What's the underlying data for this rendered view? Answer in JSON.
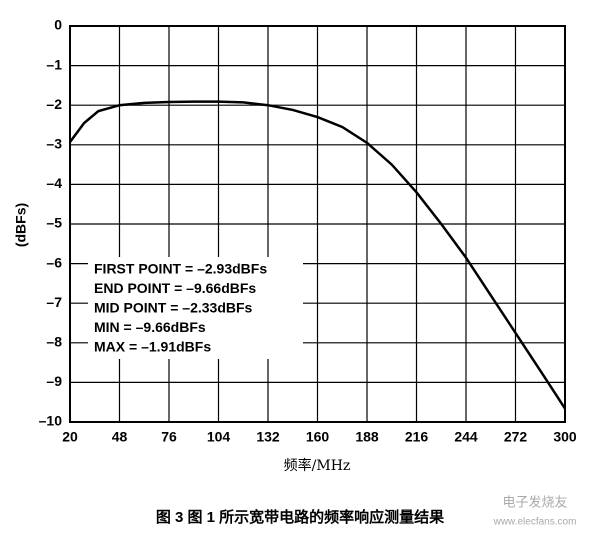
{
  "chart_data": {
    "type": "line",
    "y_label": "(dBFs)",
    "x_label": "频率/MHz",
    "caption": "图 3   图 1 所示宽带电路的频率响应测量结果",
    "watermark": [
      "电子发烧友",
      "www.elecfans.com"
    ],
    "annotations": [
      "FIRST POINT = –2.93dBFs",
      "END POINT = –9.66dBFs",
      "MID POINT = –2.33dBFs",
      "MIN = –9.66dBFs",
      "MAX = –1.91dBFs"
    ],
    "x": [
      20,
      28,
      36,
      48,
      62,
      76,
      90,
      104,
      118,
      132,
      146,
      160,
      174,
      188,
      202,
      216,
      230,
      244,
      258,
      272,
      286,
      300
    ],
    "values": [
      -2.93,
      -2.45,
      -2.15,
      -2.0,
      -1.94,
      -1.92,
      -1.91,
      -1.91,
      -1.93,
      -2.0,
      -2.12,
      -2.3,
      -2.55,
      -2.95,
      -3.5,
      -4.2,
      -5.0,
      -5.85,
      -6.8,
      -7.75,
      -8.7,
      -9.66
    ],
    "color": "#000000",
    "xlim": [
      20,
      300
    ],
    "xticks": [
      20,
      48,
      76,
      104,
      132,
      160,
      188,
      216,
      244,
      272,
      300
    ],
    "ylim": [
      -10,
      0
    ],
    "yticks": [
      0,
      {
        "value": -1,
        "label": "–1"
      },
      {
        "value": -2,
        "label": "–2"
      },
      {
        "value": -3,
        "label": "–3"
      },
      {
        "value": -4,
        "label": "–4"
      },
      {
        "value": -5,
        "label": "–5"
      },
      {
        "value": -6,
        "label": "–6"
      },
      {
        "value": -7,
        "label": "–7"
      },
      {
        "value": -8,
        "label": "–8"
      },
      {
        "value": -9,
        "label": "–9"
      },
      {
        "value": -10,
        "label": "–10"
      }
    ],
    "grid": true
  }
}
